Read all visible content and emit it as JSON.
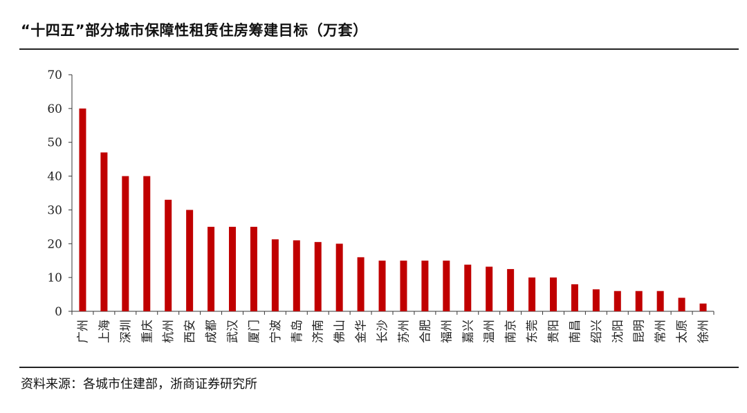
{
  "title": "“十四五”部分城市保障性租赁住房筹建目标（万套）",
  "source": "资料来源：各城市住建部，浙商证券研究所",
  "chart_data": {
    "type": "bar",
    "title": "“十四五”部分城市保障性租赁住房筹建目标（万套）",
    "xlabel": "",
    "ylabel": "",
    "ylim": [
      0,
      70
    ],
    "yticks": [
      0,
      10,
      20,
      30,
      40,
      50,
      60,
      70
    ],
    "grid": false,
    "bar_color": "#c00000",
    "categories": [
      "广州",
      "上海",
      "深圳",
      "重庆",
      "杭州",
      "西安",
      "成都",
      "武汉",
      "厦门",
      "宁波",
      "青岛",
      "济南",
      "佛山",
      "金华",
      "长沙",
      "苏州",
      "合肥",
      "福州",
      "嘉兴",
      "温州",
      "南京",
      "东莞",
      "贵阳",
      "南昌",
      "绍兴",
      "沈阳",
      "昆明",
      "常州",
      "太原",
      "徐州"
    ],
    "values": [
      60,
      47,
      40,
      40,
      33,
      30,
      25,
      25,
      25,
      21.3,
      21,
      20.5,
      20,
      16,
      15,
      15,
      15,
      15,
      13.8,
      13.2,
      12.5,
      10,
      10,
      8,
      6.5,
      6,
      6,
      6,
      4,
      2.3
    ]
  }
}
